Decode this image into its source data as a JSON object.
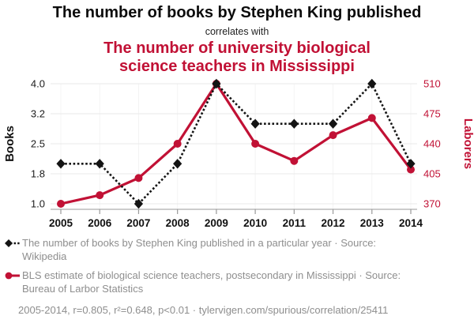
{
  "header": {
    "title_top": "The number of books by Stephen King published",
    "connector": "correlates with",
    "title_bottom": "The number of university biological science teachers in Mississippi"
  },
  "colors": {
    "accent_red": "#c11135",
    "series_black": "#141414",
    "grid_gray": "#e9e9e9",
    "axis_gray": "#9a9a9a",
    "legend_gray": "#8e8e8e"
  },
  "chart_data": {
    "type": "line",
    "x": [
      2005,
      2006,
      2007,
      2008,
      2009,
      2010,
      2011,
      2012,
      2013,
      2014
    ],
    "series": [
      {
        "name": "The number of books by Stephen King published in a particular year",
        "axis": "left",
        "style": "dotted-diamond",
        "color": "#141414",
        "values": [
          2,
          2,
          1,
          2,
          4,
          3,
          3,
          3,
          4,
          2
        ]
      },
      {
        "name": "BLS estimate of biological science teachers, postsecondary in Mississippi",
        "axis": "right",
        "style": "solid-circle",
        "color": "#c11135",
        "values": [
          370,
          380,
          400,
          440,
          510,
          440,
          420,
          450,
          470,
          410
        ]
      }
    ],
    "left_axis": {
      "label": "Books",
      "ticks": [
        "4.0",
        "3.2",
        "2.5",
        "1.8",
        "1.0"
      ],
      "range": [
        1.0,
        4.0
      ]
    },
    "right_axis": {
      "label": "Laborers",
      "ticks": [
        "510",
        "475",
        "440",
        "405",
        "370"
      ],
      "range": [
        370,
        510
      ]
    },
    "grid": true,
    "legend_position": "bottom"
  },
  "legend": [
    {
      "marker": "black-diamond-dotted",
      "text": "The number of books by Stephen King published in a particular year · Source: Wikipedia"
    },
    {
      "marker": "red-circle-line",
      "text": "BLS estimate of biological science teachers, postsecondary in Mississippi · Source: Bureau of Larbor Statistics"
    }
  ],
  "footer": {
    "stats": "2005-2014, r=0.805, r²=0.648, p<0.01 · tylervigen.com/spurious/correlation/25411"
  }
}
